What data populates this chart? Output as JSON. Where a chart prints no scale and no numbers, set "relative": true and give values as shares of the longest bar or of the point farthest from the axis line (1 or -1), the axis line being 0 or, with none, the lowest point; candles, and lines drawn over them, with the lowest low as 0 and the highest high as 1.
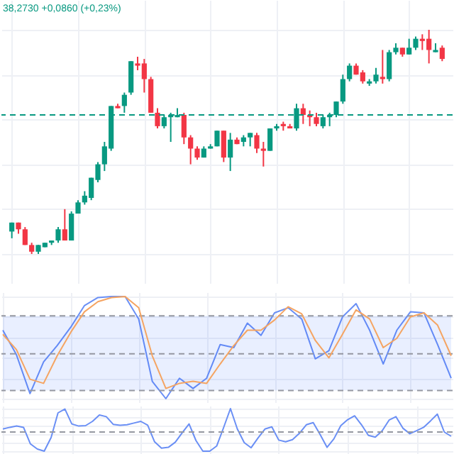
{
  "chart_data": [
    {
      "type": "candlestick",
      "relative": true,
      "grid": true,
      "tick_labels": false,
      "annotations": [
        "38,2730 +0,0860 (+0,23%)"
      ],
      "colors": [
        "#089981",
        "#f23645",
        "#f23645",
        "#f23645",
        "#089981",
        "#089981",
        "#089981",
        "#089981",
        "#f23645",
        "#089981",
        "#089981",
        "#089981",
        "#089981",
        "#089981",
        "#089981",
        "#089981",
        "#f23645",
        "#089981",
        "#089981",
        "#f23645",
        "#f23645",
        "#f23645",
        "#f23645",
        "#089981",
        "#089981",
        "#089981",
        "#f23645",
        "#f23645",
        "#f23645",
        "#089981",
        "#089981",
        "#089981",
        "#f23645",
        "#089981",
        "#f23645",
        "#089981",
        "#089981",
        "#f23645",
        "#f23645",
        "#089981",
        "#089981",
        "#f23645",
        "#f23645",
        "#089981",
        "#f23645",
        "#f23645",
        "#f23645",
        "#089981",
        "#089981",
        "#089981",
        "#089981",
        "#089981",
        "#f23645",
        "#f23645",
        "#089981",
        "#089981",
        "#f23645",
        "#089981",
        "#089981",
        "#f23645",
        "#089981",
        "#089981",
        "#f23645",
        "#f23645",
        "#089981",
        "#f23645"
      ],
      "ref_lines": [
        {
          "axis": "y",
          "value": 0.62,
          "color": "#089981",
          "line_style": "dashed"
        }
      ],
      "categories": [
        null,
        null,
        null,
        null,
        null,
        null,
        null,
        null,
        null,
        null,
        null,
        null,
        null,
        null,
        null,
        null,
        null,
        null,
        null,
        null,
        null,
        null,
        null,
        null,
        null,
        null,
        null,
        null,
        null,
        null,
        null,
        null,
        null,
        null,
        null,
        null,
        null,
        null,
        null,
        null,
        null,
        null,
        null,
        null,
        null,
        null,
        null,
        null,
        null,
        null,
        null,
        null,
        null,
        null,
        null,
        null,
        null,
        null,
        null,
        null,
        null,
        null,
        null,
        null,
        null,
        null
      ],
      "ohlc": [
        [
          0.1,
          0.14,
          0.07,
          0.14
        ],
        [
          0.14,
          0.14,
          0.09,
          0.11
        ],
        [
          0.11,
          0.12,
          0.04,
          0.04
        ],
        [
          0.04,
          0.05,
          0,
          0.01
        ],
        [
          0.01,
          0.04,
          0,
          0.04
        ],
        [
          0.03,
          0.05,
          0.03,
          0.05
        ],
        [
          0.05,
          0.06,
          0.04,
          0.06
        ],
        [
          0.06,
          0.12,
          0.05,
          0.11
        ],
        [
          0.11,
          0.2,
          0.06,
          0.06
        ],
        [
          0.06,
          0.19,
          0.06,
          0.18
        ],
        [
          0.18,
          0.24,
          0.18,
          0.23
        ],
        [
          0.23,
          0.28,
          0.22,
          0.26
        ],
        [
          0.25,
          0.34,
          0.24,
          0.34
        ],
        [
          0.33,
          0.41,
          0.32,
          0.4
        ],
        [
          0.4,
          0.5,
          0.37,
          0.48
        ],
        [
          0.47,
          0.66,
          0.46,
          0.66
        ],
        [
          0.66,
          0.67,
          0.65,
          0.65
        ],
        [
          0.66,
          0.72,
          0.63,
          0.71
        ],
        [
          0.72,
          0.86,
          0.71,
          0.86
        ],
        [
          0.85,
          0.88,
          0.82,
          0.84
        ],
        [
          0.85,
          0.87,
          0.72,
          0.78
        ],
        [
          0.78,
          0.79,
          0.63,
          0.63
        ],
        [
          0.63,
          0.65,
          0.56,
          0.57
        ],
        [
          0.57,
          0.62,
          0.56,
          0.61
        ],
        [
          0.61,
          0.63,
          0.5,
          0.62
        ],
        [
          0.61,
          0.65,
          0.61,
          0.62
        ],
        [
          0.62,
          0.63,
          0.49,
          0.52
        ],
        [
          0.52,
          0.53,
          0.4,
          0.47
        ],
        [
          0.47,
          0.48,
          0.42,
          0.43
        ],
        [
          0.43,
          0.48,
          0.43,
          0.47
        ],
        [
          0.47,
          0.49,
          0.47,
          0.48
        ],
        [
          0.48,
          0.55,
          0.48,
          0.55
        ],
        [
          0.55,
          0.55,
          0.41,
          0.43
        ],
        [
          0.43,
          0.54,
          0.37,
          0.51
        ],
        [
          0.51,
          0.52,
          0.49,
          0.49
        ],
        [
          0.5,
          0.53,
          0.48,
          0.52
        ],
        [
          0.52,
          0.54,
          0.48,
          0.54
        ],
        [
          0.53,
          0.54,
          0.45,
          0.47
        ],
        [
          0.47,
          0.5,
          0.39,
          0.46
        ],
        [
          0.46,
          0.56,
          0.46,
          0.56
        ],
        [
          0.56,
          0.58,
          0.55,
          0.57
        ],
        [
          0.58,
          0.59,
          0.55,
          0.57
        ],
        [
          0.57,
          0.58,
          0.56,
          0.56
        ],
        [
          0.56,
          0.67,
          0.55,
          0.65
        ],
        [
          0.65,
          0.67,
          0.58,
          0.62
        ],
        [
          0.62,
          0.64,
          0.57,
          0.61
        ],
        [
          0.61,
          0.63,
          0.57,
          0.58
        ],
        [
          0.57,
          0.62,
          0.56,
          0.61
        ],
        [
          0.61,
          0.63,
          0.57,
          0.62
        ],
        [
          0.62,
          0.68,
          0.61,
          0.68
        ],
        [
          0.68,
          0.8,
          0.67,
          0.78
        ],
        [
          0.78,
          0.85,
          0.77,
          0.84
        ],
        [
          0.84,
          0.85,
          0.8,
          0.8
        ],
        [
          0.81,
          0.82,
          0.76,
          0.77
        ],
        [
          0.76,
          0.78,
          0.75,
          0.77
        ],
        [
          0.77,
          0.83,
          0.76,
          0.8
        ],
        [
          0.79,
          0.91,
          0.76,
          0.78
        ],
        [
          0.78,
          0.91,
          0.77,
          0.9
        ],
        [
          0.9,
          0.94,
          0.89,
          0.92
        ],
        [
          0.92,
          0.92,
          0.88,
          0.89
        ],
        [
          0.89,
          0.96,
          0.89,
          0.92
        ],
        [
          0.92,
          0.97,
          0.91,
          0.96
        ],
        [
          0.96,
          0.98,
          0.91,
          0.95
        ],
        [
          0.96,
          1,
          0.85,
          0.91
        ],
        [
          0.9,
          0.94,
          0.9,
          0.91
        ],
        [
          0.92,
          0.93,
          0.86,
          0.87
        ]
      ]
    },
    {
      "type": "line",
      "relative": true,
      "grid": true,
      "tick_labels": false,
      "categories": [
        null,
        null,
        null,
        null,
        null,
        null,
        null,
        null,
        null,
        null,
        null,
        null,
        null,
        null,
        null,
        null,
        null,
        null,
        null,
        null,
        null,
        null,
        null,
        null,
        null,
        null,
        null,
        null,
        null,
        null,
        null,
        null,
        null,
        null
      ],
      "bands": [
        {
          "axis": "y",
          "from": 0.08,
          "to": 0.81,
          "color": "#2962ff"
        }
      ],
      "ref_lines": [
        {
          "axis": "y",
          "value": 0.81,
          "color": "#9598a1",
          "line_style": "dashed"
        },
        {
          "axis": "y",
          "value": 0.44,
          "color": "#9598a1",
          "line_style": "dashed"
        },
        {
          "axis": "y",
          "value": 0.08,
          "color": "#9598a1",
          "line_style": "dashed"
        }
      ],
      "series": [
        {
          "color": "#6a8ff5",
          "values": [
            0.67,
            0.43,
            0.05,
            0.36,
            0.52,
            0.7,
            0.91,
            0.99,
            1,
            1,
            0.78,
            0.17,
            0,
            0.2,
            0.1,
            0.2,
            0.53,
            0.5,
            0.74,
            0.62,
            0.84,
            0.89,
            0.78,
            0.39,
            0.47,
            0.8,
            0.93,
            0.67,
            0.34,
            0.67,
            0.85,
            0.84,
            0.53,
            0.2
          ]
        },
        {
          "color": "#f5a462",
          "values": [
            0.63,
            0.48,
            0.19,
            0.15,
            0.42,
            0.65,
            0.85,
            0.95,
            0.99,
            1,
            0.89,
            0.42,
            0.1,
            0.15,
            0.17,
            0.15,
            0.34,
            0.52,
            0.67,
            0.67,
            0.77,
            0.9,
            0.83,
            0.57,
            0.4,
            0.63,
            0.87,
            0.78,
            0.5,
            0.59,
            0.8,
            0.84,
            0.72,
            0.42
          ]
        }
      ]
    },
    {
      "type": "line",
      "relative": true,
      "grid": true,
      "tick_labels": false,
      "categories": [
        null,
        null,
        null,
        null,
        null,
        null,
        null,
        null,
        null,
        null,
        null,
        null,
        null,
        null,
        null,
        null,
        null,
        null,
        null,
        null,
        null,
        null,
        null,
        null,
        null,
        null,
        null,
        null,
        null,
        null,
        null,
        null,
        null,
        null,
        null,
        null,
        null,
        null,
        null,
        null,
        null,
        null,
        null,
        null,
        null,
        null,
        null,
        null,
        null,
        null,
        null,
        null,
        null,
        null,
        null,
        null,
        null,
        null,
        null,
        null,
        null,
        null,
        null,
        null,
        null,
        null
      ],
      "ref_lines": [
        {
          "axis": "y",
          "value": 0.45,
          "color": "#9598a1",
          "line_style": "dashed"
        }
      ],
      "series": [
        {
          "color": "#6a8ff5",
          "values": [
            0.52,
            0.56,
            0.59,
            0.56,
            0.17,
            0.05,
            0,
            0.32,
            0.9,
            0.99,
            0.64,
            0.59,
            0.6,
            0.7,
            0.85,
            0.81,
            0.63,
            0.61,
            0.62,
            0.66,
            0.7,
            0.61,
            0.22,
            0.07,
            0.09,
            0.21,
            0.43,
            0.64,
            0.25,
            0,
            0,
            0.12,
            0.55,
            1,
            0.52,
            0.2,
            0.08,
            0.31,
            0.52,
            0.57,
            0.26,
            0.22,
            0.27,
            0.42,
            0.62,
            0.67,
            0.39,
            0.09,
            0.29,
            0.6,
            0.74,
            0.83,
            0.62,
            0.37,
            0.33,
            0.48,
            0.73,
            0.81,
            0.54,
            0.41,
            0.48,
            0.56,
            0.71,
            0.87,
            0.45,
            0.35
          ]
        }
      ]
    }
  ]
}
